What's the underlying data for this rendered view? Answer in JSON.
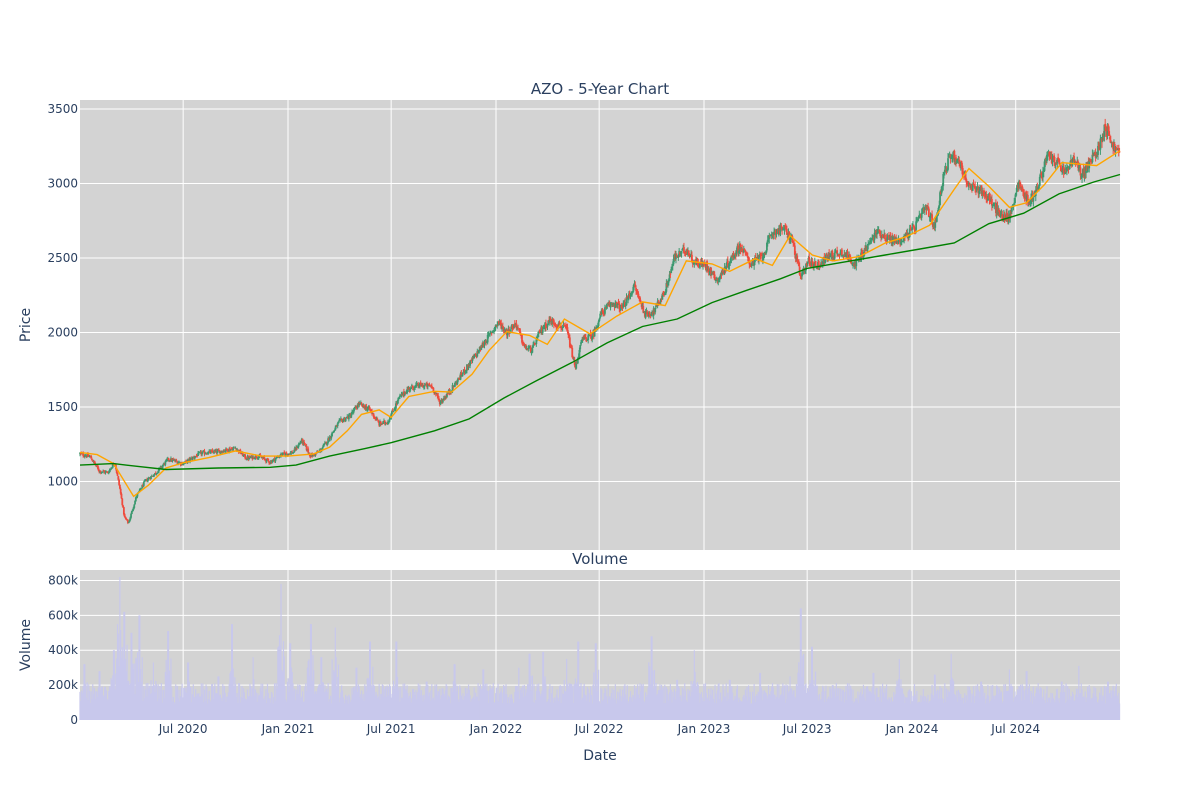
{
  "chart_data": [
    {
      "type": "candlestick",
      "title": "AZO - 5-Year Chart",
      "ylabel": "Price",
      "xlabel": "",
      "ylim": [
        540,
        3560
      ],
      "xlim": [
        "2020-01-02",
        "2024-12-31"
      ],
      "y_ticks": [
        {
          "value": 1000,
          "label": "1000"
        },
        {
          "value": 1500,
          "label": "1500"
        },
        {
          "value": 2000,
          "label": "2000"
        },
        {
          "value": 2500,
          "label": "2500"
        },
        {
          "value": 3000,
          "label": "3000"
        },
        {
          "value": 3500,
          "label": "3500"
        }
      ],
      "x_grid_dates": [
        "2020-07-01",
        "2021-01-01",
        "2021-07-01",
        "2022-01-01",
        "2022-07-01",
        "2023-01-01",
        "2023-07-01",
        "2024-01-01",
        "2024-07-01"
      ],
      "grid": true,
      "increasing_color": "#3d9970",
      "decreasing_color": "#ef4b3d",
      "close_trend": [
        [
          "2020-01-02",
          1185
        ],
        [
          "2020-01-20",
          1165
        ],
        [
          "2020-02-05",
          1070
        ],
        [
          "2020-02-20",
          1060
        ],
        [
          "2020-03-03",
          1130
        ],
        [
          "2020-03-12",
          950
        ],
        [
          "2020-03-20",
          760
        ],
        [
          "2020-03-27",
          720
        ],
        [
          "2020-04-10",
          900
        ],
        [
          "2020-04-25",
          1000
        ],
        [
          "2020-05-15",
          1060
        ],
        [
          "2020-06-05",
          1150
        ],
        [
          "2020-07-01",
          1120
        ],
        [
          "2020-08-01",
          1190
        ],
        [
          "2020-09-01",
          1200
        ],
        [
          "2020-10-01",
          1225
        ],
        [
          "2020-10-20",
          1155
        ],
        [
          "2020-11-10",
          1170
        ],
        [
          "2020-12-01",
          1130
        ],
        [
          "2020-12-20",
          1180
        ],
        [
          "2021-01-10",
          1195
        ],
        [
          "2021-01-25",
          1275
        ],
        [
          "2021-02-10",
          1170
        ],
        [
          "2021-02-25",
          1200
        ],
        [
          "2021-03-10",
          1265
        ],
        [
          "2021-04-01",
          1400
        ],
        [
          "2021-04-20",
          1440
        ],
        [
          "2021-05-05",
          1520
        ],
        [
          "2021-05-25",
          1480
        ],
        [
          "2021-06-10",
          1385
        ],
        [
          "2021-06-25",
          1400
        ],
        [
          "2021-07-15",
          1560
        ],
        [
          "2021-08-01",
          1625
        ],
        [
          "2021-08-20",
          1645
        ],
        [
          "2021-09-10",
          1640
        ],
        [
          "2021-09-25",
          1530
        ],
        [
          "2021-10-15",
          1620
        ],
        [
          "2021-11-05",
          1735
        ],
        [
          "2021-11-25",
          1840
        ],
        [
          "2021-12-15",
          1950
        ],
        [
          "2022-01-05",
          2070
        ],
        [
          "2022-01-20",
          2000
        ],
        [
          "2022-02-05",
          2060
        ],
        [
          "2022-02-20",
          1900
        ],
        [
          "2022-03-05",
          1880
        ],
        [
          "2022-03-20",
          2010
        ],
        [
          "2022-04-05",
          2080
        ],
        [
          "2022-04-20",
          2050
        ],
        [
          "2022-05-05",
          2020
        ],
        [
          "2022-05-20",
          1760
        ],
        [
          "2022-06-01",
          1950
        ],
        [
          "2022-06-20",
          1980
        ],
        [
          "2022-07-05",
          2130
        ],
        [
          "2022-07-25",
          2200
        ],
        [
          "2022-08-10",
          2160
        ],
        [
          "2022-09-01",
          2310
        ],
        [
          "2022-09-20",
          2120
        ],
        [
          "2022-10-05",
          2140
        ],
        [
          "2022-10-25",
          2280
        ],
        [
          "2022-11-10",
          2500
        ],
        [
          "2022-12-01",
          2560
        ],
        [
          "2022-12-15",
          2470
        ],
        [
          "2023-01-05",
          2450
        ],
        [
          "2023-01-25",
          2350
        ],
        [
          "2023-02-15",
          2480
        ],
        [
          "2023-03-05",
          2580
        ],
        [
          "2023-03-25",
          2460
        ],
        [
          "2023-04-15",
          2520
        ],
        [
          "2023-05-01",
          2670
        ],
        [
          "2023-05-20",
          2700
        ],
        [
          "2023-06-05",
          2620
        ],
        [
          "2023-06-20",
          2360
        ],
        [
          "2023-07-01",
          2480
        ],
        [
          "2023-07-20",
          2450
        ],
        [
          "2023-08-10",
          2520
        ],
        [
          "2023-09-01",
          2540
        ],
        [
          "2023-09-25",
          2460
        ],
        [
          "2023-10-15",
          2580
        ],
        [
          "2023-11-01",
          2680
        ],
        [
          "2023-11-20",
          2630
        ],
        [
          "2023-12-10",
          2610
        ],
        [
          "2024-01-05",
          2700
        ],
        [
          "2024-01-25",
          2840
        ],
        [
          "2024-02-10",
          2710
        ],
        [
          "2024-02-25",
          3050
        ],
        [
          "2024-03-10",
          3200
        ],
        [
          "2024-03-25",
          3140
        ],
        [
          "2024-04-10",
          2970
        ],
        [
          "2024-05-01",
          2960
        ],
        [
          "2024-05-20",
          2870
        ],
        [
          "2024-06-05",
          2780
        ],
        [
          "2024-06-20",
          2770
        ],
        [
          "2024-07-05",
          3000
        ],
        [
          "2024-07-25",
          2870
        ],
        [
          "2024-08-10",
          2990
        ],
        [
          "2024-08-25",
          3180
        ],
        [
          "2024-09-10",
          3150
        ],
        [
          "2024-09-25",
          3070
        ],
        [
          "2024-10-10",
          3160
        ],
        [
          "2024-10-25",
          3060
        ],
        [
          "2024-11-10",
          3150
        ],
        [
          "2024-11-25",
          3250
        ],
        [
          "2024-12-05",
          3390
        ],
        [
          "2024-12-20",
          3240
        ],
        [
          "2024-12-31",
          3200
        ]
      ],
      "series": [
        {
          "name": "",
          "type": "line",
          "color": "#ffa500",
          "points": [
            [
              "2020-01-02",
              1195
            ],
            [
              "2020-02-01",
              1180
            ],
            [
              "2020-03-01",
              1120
            ],
            [
              "2020-04-05",
              900
            ],
            [
              "2020-05-01",
              975
            ],
            [
              "2020-06-01",
              1090
            ],
            [
              "2020-07-01",
              1125
            ],
            [
              "2020-08-15",
              1160
            ],
            [
              "2020-10-01",
              1205
            ],
            [
              "2020-11-15",
              1170
            ],
            [
              "2021-01-01",
              1170
            ],
            [
              "2021-02-15",
              1185
            ],
            [
              "2021-03-15",
              1230
            ],
            [
              "2021-04-15",
              1340
            ],
            [
              "2021-05-10",
              1450
            ],
            [
              "2021-06-10",
              1480
            ],
            [
              "2021-07-01",
              1430
            ],
            [
              "2021-08-01",
              1570
            ],
            [
              "2021-09-15",
              1605
            ],
            [
              "2021-10-15",
              1600
            ],
            [
              "2021-11-20",
              1720
            ],
            [
              "2021-12-20",
              1880
            ],
            [
              "2022-01-20",
              2005
            ],
            [
              "2022-03-01",
              1980
            ],
            [
              "2022-04-01",
              1920
            ],
            [
              "2022-05-01",
              2090
            ],
            [
              "2022-06-15",
              1990
            ],
            [
              "2022-08-01",
              2110
            ],
            [
              "2022-09-15",
              2205
            ],
            [
              "2022-10-25",
              2180
            ],
            [
              "2022-12-01",
              2480
            ],
            [
              "2023-01-15",
              2460
            ],
            [
              "2023-02-15",
              2410
            ],
            [
              "2023-04-01",
              2495
            ],
            [
              "2023-05-01",
              2450
            ],
            [
              "2023-06-01",
              2650
            ],
            [
              "2023-07-10",
              2520
            ],
            [
              "2023-08-15",
              2480
            ],
            [
              "2023-10-01",
              2510
            ],
            [
              "2023-11-15",
              2600
            ],
            [
              "2023-12-20",
              2640
            ],
            [
              "2024-02-01",
              2720
            ],
            [
              "2024-03-15",
              2960
            ],
            [
              "2024-04-10",
              3100
            ],
            [
              "2024-05-15",
              2980
            ],
            [
              "2024-06-20",
              2840
            ],
            [
              "2024-07-20",
              2870
            ],
            [
              "2024-08-20",
              2990
            ],
            [
              "2024-09-20",
              3140
            ],
            [
              "2024-10-20",
              3130
            ],
            [
              "2024-11-20",
              3120
            ],
            [
              "2024-12-31",
              3220
            ]
          ]
        },
        {
          "name": "",
          "type": "line",
          "color": "#008000",
          "points": [
            [
              "2020-01-02",
              1110
            ],
            [
              "2020-03-01",
              1120
            ],
            [
              "2020-04-15",
              1100
            ],
            [
              "2020-06-01",
              1080
            ],
            [
              "2020-09-01",
              1090
            ],
            [
              "2020-12-01",
              1095
            ],
            [
              "2021-01-15",
              1110
            ],
            [
              "2021-03-15",
              1170
            ],
            [
              "2021-05-15",
              1220
            ],
            [
              "2021-07-01",
              1260
            ],
            [
              "2021-09-15",
              1340
            ],
            [
              "2021-11-15",
              1420
            ],
            [
              "2022-01-15",
              1560
            ],
            [
              "2022-03-15",
              1680
            ],
            [
              "2022-05-15",
              1800
            ],
            [
              "2022-07-15",
              1930
            ],
            [
              "2022-09-15",
              2040
            ],
            [
              "2022-11-15",
              2090
            ],
            [
              "2023-01-15",
              2200
            ],
            [
              "2023-03-15",
              2280
            ],
            [
              "2023-05-15",
              2360
            ],
            [
              "2023-07-01",
              2430
            ],
            [
              "2023-09-15",
              2480
            ],
            [
              "2023-11-15",
              2520
            ],
            [
              "2024-01-15",
              2560
            ],
            [
              "2024-03-15",
              2600
            ],
            [
              "2024-05-15",
              2730
            ],
            [
              "2024-07-15",
              2800
            ],
            [
              "2024-09-15",
              2930
            ],
            [
              "2024-11-15",
              3010
            ],
            [
              "2024-12-31",
              3060
            ]
          ]
        }
      ]
    },
    {
      "type": "bar",
      "title": "Volume",
      "ylabel": "Volume",
      "xlabel": "Date",
      "ylim": [
        0,
        860000
      ],
      "xlim": [
        "2020-01-02",
        "2024-12-31"
      ],
      "y_ticks": [
        {
          "value": 0,
          "label": "0"
        },
        {
          "value": 200000,
          "label": "200k"
        },
        {
          "value": 400000,
          "label": "400k"
        },
        {
          "value": 600000,
          "label": "600k"
        },
        {
          "value": 800000,
          "label": "800k"
        }
      ],
      "x_ticks": [
        {
          "date": "2020-07-01",
          "label": "Jul 2020"
        },
        {
          "date": "2021-01-01",
          "label": "Jan 2021"
        },
        {
          "date": "2021-07-01",
          "label": "Jul 2021"
        },
        {
          "date": "2022-01-01",
          "label": "Jan 2022"
        },
        {
          "date": "2022-07-01",
          "label": "Jul 2022"
        },
        {
          "date": "2023-01-01",
          "label": "Jan 2023"
        },
        {
          "date": "2023-07-01",
          "label": "Jul 2023"
        },
        {
          "date": "2024-01-01",
          "label": "Jan 2024"
        },
        {
          "date": "2024-07-01",
          "label": "Jul 2024"
        }
      ],
      "grid": true,
      "bar_color": "#c8c8ec",
      "base_level": 170000,
      "peaks": [
        [
          "2020-01-10",
          320000
        ],
        [
          "2020-02-05",
          280000
        ],
        [
          "2020-03-02",
          400000
        ],
        [
          "2020-03-12",
          820000
        ],
        [
          "2020-03-20",
          620000
        ],
        [
          "2020-04-01",
          500000
        ],
        [
          "2020-04-15",
          600000
        ],
        [
          "2020-05-10",
          330000
        ],
        [
          "2020-06-05",
          510000
        ],
        [
          "2020-07-10",
          330000
        ],
        [
          "2020-09-01",
          250000
        ],
        [
          "2020-09-25",
          550000
        ],
        [
          "2020-11-01",
          360000
        ],
        [
          "2020-12-20",
          780000
        ],
        [
          "2021-01-05",
          440000
        ],
        [
          "2021-02-10",
          550000
        ],
        [
          "2021-03-01",
          360000
        ],
        [
          "2021-03-25",
          530000
        ],
        [
          "2021-05-01",
          300000
        ],
        [
          "2021-05-25",
          450000
        ],
        [
          "2021-07-10",
          450000
        ],
        [
          "2021-09-01",
          220000
        ],
        [
          "2021-10-20",
          320000
        ],
        [
          "2021-12-10",
          290000
        ],
        [
          "2022-02-10",
          300000
        ],
        [
          "2022-03-01",
          380000
        ],
        [
          "2022-03-25",
          390000
        ],
        [
          "2022-05-05",
          350000
        ],
        [
          "2022-05-25",
          450000
        ],
        [
          "2022-06-25",
          440000
        ],
        [
          "2022-09-01",
          200000
        ],
        [
          "2022-10-01",
          480000
        ],
        [
          "2022-11-15",
          230000
        ],
        [
          "2022-12-15",
          400000
        ],
        [
          "2023-02-15",
          230000
        ],
        [
          "2023-04-10",
          270000
        ],
        [
          "2023-06-01",
          250000
        ],
        [
          "2023-06-20",
          640000
        ],
        [
          "2023-07-10",
          420000
        ],
        [
          "2023-08-15",
          200000
        ],
        [
          "2023-10-25",
          270000
        ],
        [
          "2023-12-10",
          350000
        ],
        [
          "2024-02-10",
          260000
        ],
        [
          "2024-03-10",
          380000
        ],
        [
          "2024-05-01",
          220000
        ],
        [
          "2024-06-20",
          290000
        ],
        [
          "2024-07-20",
          280000
        ],
        [
          "2024-09-20",
          220000
        ],
        [
          "2024-10-20",
          310000
        ],
        [
          "2024-12-10",
          220000
        ]
      ]
    }
  ]
}
